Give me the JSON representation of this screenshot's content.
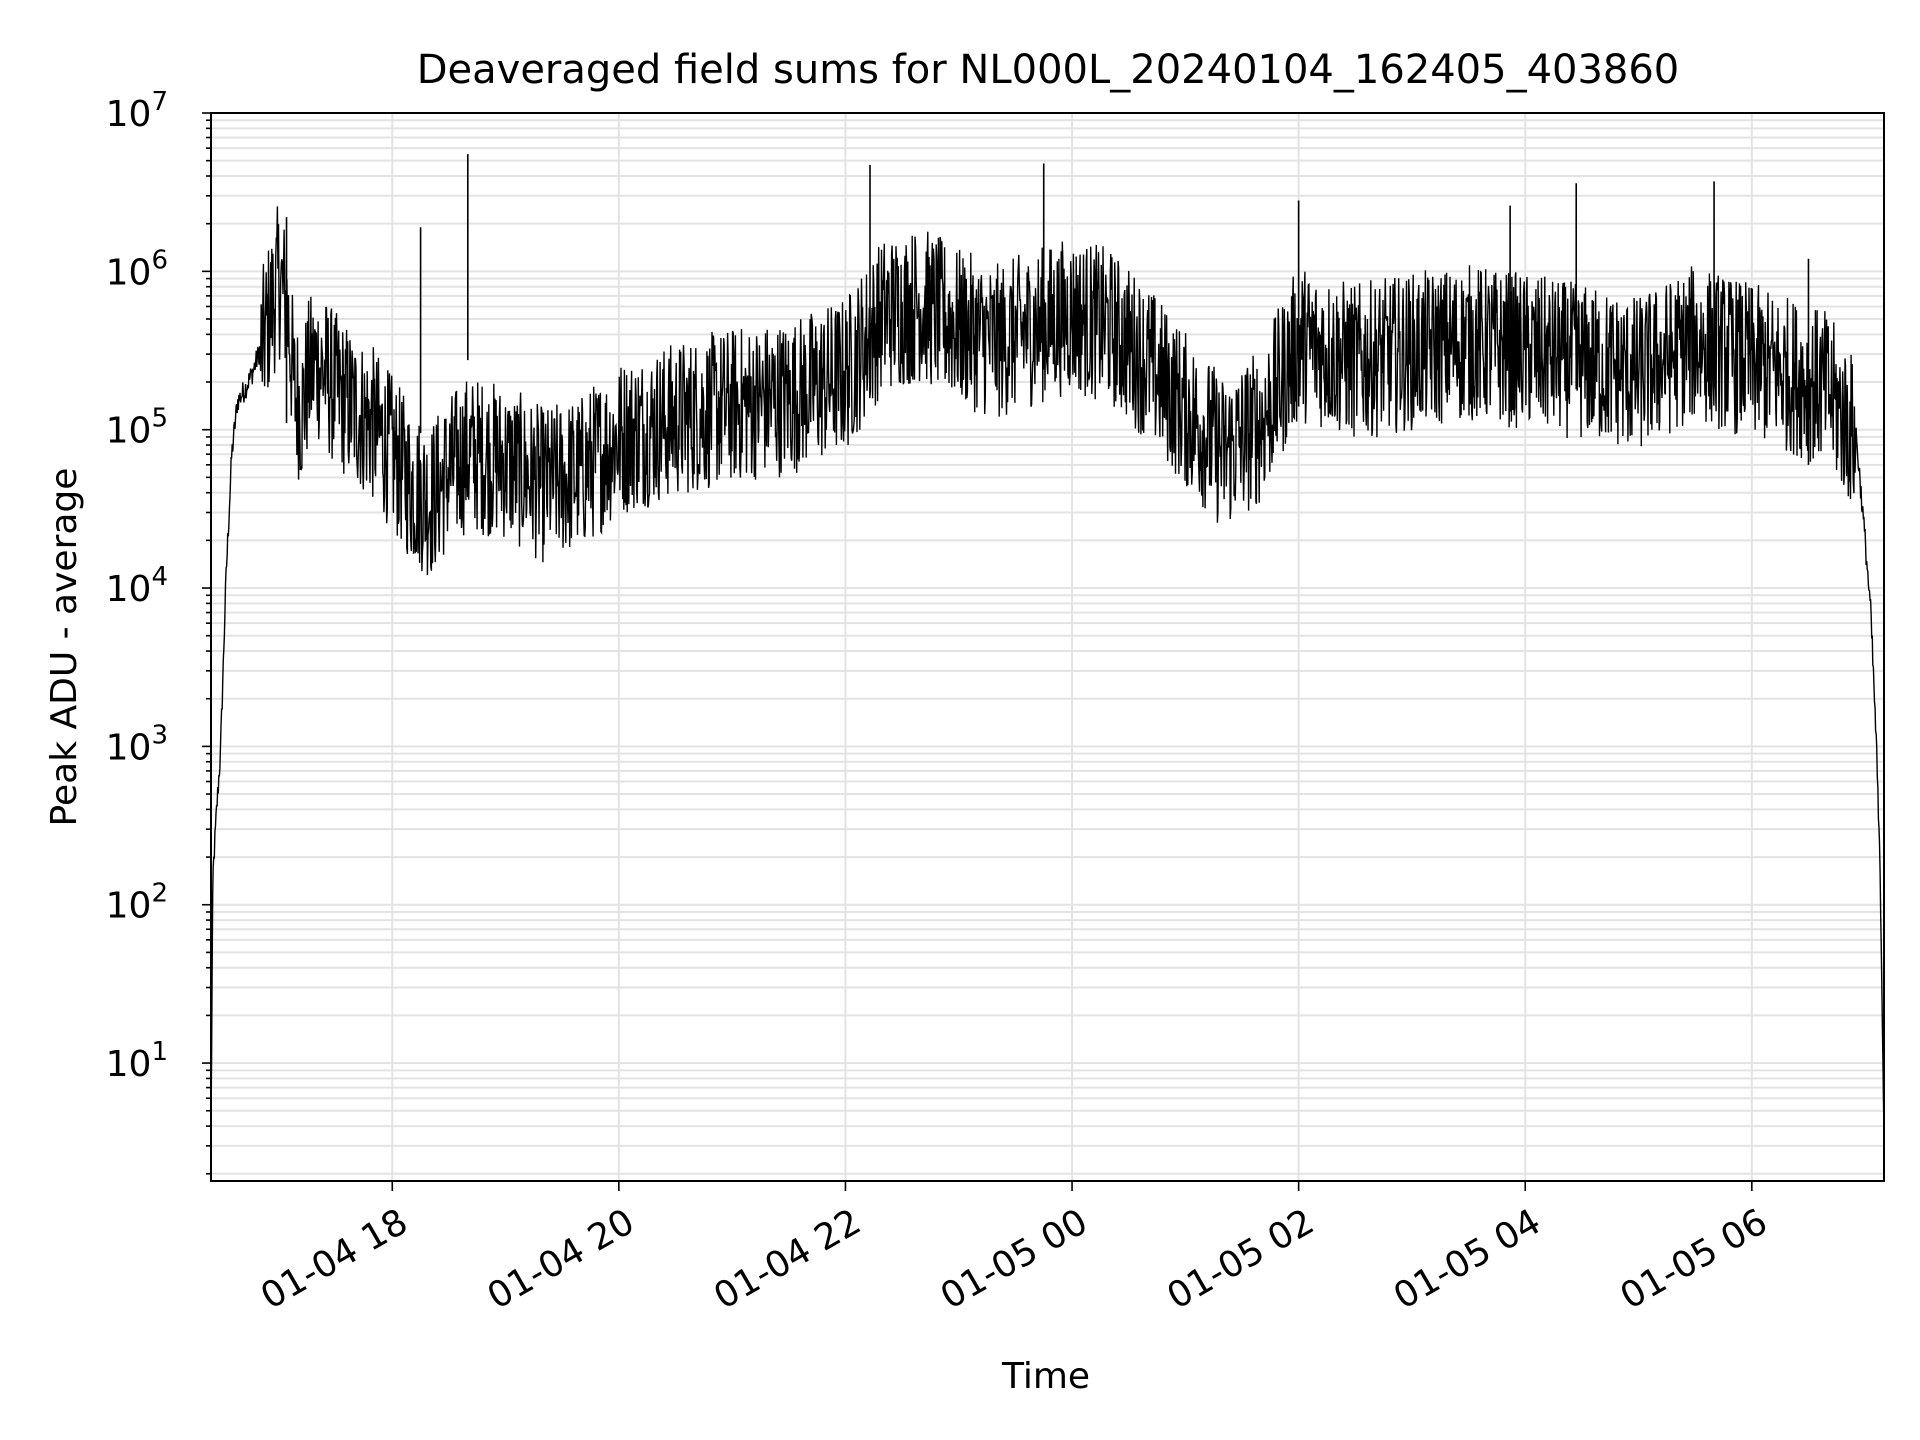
{
  "chart_data": {
    "type": "line",
    "title": "Deaveraged field sums for NL000L_20240104_162405_403860",
    "xlabel": "Time",
    "ylabel": "Peak ADU - average",
    "yscale": "log",
    "ylim": [
      1.8,
      10000000
    ],
    "xlim": [
      "2024-01-04 16:24",
      "2024-01-05 07:10"
    ],
    "x_ticks": [
      {
        "value": "2024-01-04 18:00",
        "label": "01-04 18"
      },
      {
        "value": "2024-01-04 20:00",
        "label": "01-04 20"
      },
      {
        "value": "2024-01-04 22:00",
        "label": "01-04 22"
      },
      {
        "value": "2024-01-05 00:00",
        "label": "01-05 00"
      },
      {
        "value": "2024-01-05 02:00",
        "label": "01-05 02"
      },
      {
        "value": "2024-01-05 04:00",
        "label": "01-05 04"
      },
      {
        "value": "2024-01-05 06:00",
        "label": "01-05 06"
      }
    ],
    "y_ticks": [
      {
        "value": 10,
        "base": "10",
        "exp": "1"
      },
      {
        "value": 100,
        "base": "10",
        "exp": "2"
      },
      {
        "value": 1000,
        "base": "10",
        "exp": "3"
      },
      {
        "value": 10000,
        "base": "10",
        "exp": "4"
      },
      {
        "value": 100000,
        "base": "10",
        "exp": "5"
      },
      {
        "value": 1000000,
        "base": "10",
        "exp": "6"
      },
      {
        "value": 10000000,
        "base": "10",
        "exp": "7"
      }
    ],
    "grid": true,
    "line_color": "#000000",
    "grid_color": "#e3e3e3",
    "series": [
      {
        "x": [
          "2024-01-04 16:24",
          "2024-01-04 16:25",
          "2024-01-04 16:27",
          "2024-01-04 16:29",
          "2024-01-04 16:32",
          "2024-01-04 16:35",
          "2024-01-04 16:38",
          "2024-01-04 16:42",
          "2024-01-04 16:46",
          "2024-01-04 16:50",
          "2024-01-04 16:55",
          "2024-01-04 17:00",
          "2024-01-04 17:04",
          "2024-01-04 17:06",
          "2024-01-04 17:08",
          "2024-01-04 17:12",
          "2024-01-04 17:16",
          "2024-01-04 17:20",
          "2024-01-04 17:30",
          "2024-01-04 17:40",
          "2024-01-04 17:50",
          "2024-01-04 18:00",
          "2024-01-04 18:10",
          "2024-01-04 18:20",
          "2024-01-04 18:30",
          "2024-01-04 18:40",
          "2024-01-04 19:00",
          "2024-01-04 19:20",
          "2024-01-04 19:40",
          "2024-01-04 20:00",
          "2024-01-04 20:30",
          "2024-01-04 21:00",
          "2024-01-04 21:30",
          "2024-01-04 22:00",
          "2024-01-04 22:20",
          "2024-01-04 22:40",
          "2024-01-04 23:00",
          "2024-01-04 23:20",
          "2024-01-04 23:40",
          "2024-01-05 00:00",
          "2024-01-05 00:20",
          "2024-01-05 00:40",
          "2024-01-05 01:00",
          "2024-01-05 01:20",
          "2024-01-05 01:40",
          "2024-01-05 02:00",
          "2024-01-05 02:30",
          "2024-01-05 03:00",
          "2024-01-05 03:30",
          "2024-01-05 04:00",
          "2024-01-05 04:30",
          "2024-01-05 05:00",
          "2024-01-05 05:30",
          "2024-01-05 06:00",
          "2024-01-05 06:20",
          "2024-01-05 06:40",
          "2024-01-05 06:55",
          "2024-01-05 07:00",
          "2024-01-05 07:03",
          "2024-01-05 07:06",
          "2024-01-05 07:08",
          "2024-01-05 07:10"
        ],
        "values": [
          4,
          150,
          400,
          900,
          12000,
          70000,
          150000,
          180000,
          230000,
          320000,
          600000,
          1000000,
          700000,
          400000,
          200000,
          150000,
          250000,
          300000,
          200000,
          150000,
          120000,
          80000,
          50000,
          40000,
          60000,
          80000,
          70000,
          50000,
          60000,
          100000,
          130000,
          160000,
          180000,
          250000,
          600000,
          700000,
          500000,
          400000,
          500000,
          600000,
          500000,
          300000,
          150000,
          80000,
          120000,
          400000,
          300000,
          350000,
          400000,
          350000,
          300000,
          250000,
          400000,
          300000,
          250000,
          200000,
          100000,
          20000,
          7000,
          1000,
          150,
          4
        ]
      }
    ],
    "overlay_spikes": [
      {
        "x": "2024-01-04 17:04",
        "y": 2200000
      },
      {
        "x": "2024-01-04 18:15",
        "y": 1900000
      },
      {
        "x": "2024-01-04 18:40",
        "y": 5500000
      },
      {
        "x": "2024-01-04 22:13",
        "y": 4700000
      },
      {
        "x": "2024-01-04 23:45",
        "y": 4800000
      },
      {
        "x": "2024-01-05 02:00",
        "y": 2800000
      },
      {
        "x": "2024-01-05 03:52",
        "y": 2600000
      },
      {
        "x": "2024-01-05 04:27",
        "y": 3600000
      },
      {
        "x": "2024-01-05 05:40",
        "y": 3700000
      },
      {
        "x": "2024-01-05 06:30",
        "y": 1200000
      }
    ]
  }
}
